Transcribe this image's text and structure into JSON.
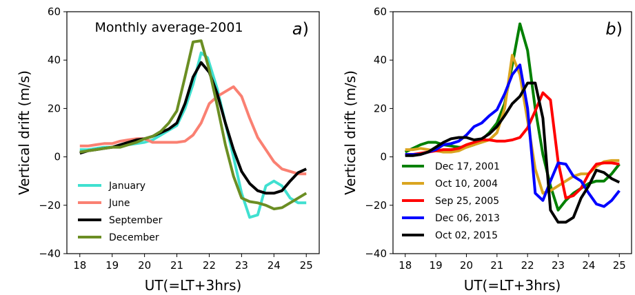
{
  "chart_data": [
    {
      "type": "line",
      "title": "Monthly average-2001",
      "panel_tag": "a",
      "tag_suffix": ")",
      "xlabel": "UT(=LT+3hrs)",
      "ylabel": "Vertical drift (m/s)",
      "xlim": [
        17.6,
        25.4
      ],
      "ylim": [
        -40,
        60
      ],
      "xticks": [
        18,
        19,
        20,
        21,
        22,
        23,
        24,
        25
      ],
      "yticks": [
        -40,
        -20,
        0,
        20,
        40,
        60
      ],
      "grid": false,
      "legend_position": "lower-left",
      "series": [
        {
          "name": "January",
          "color": "#40e0d0",
          "x": [
            18,
            18.25,
            18.5,
            18.75,
            19,
            19.25,
            19.5,
            19.75,
            20,
            20.25,
            20.5,
            20.75,
            21,
            21.25,
            21.5,
            21.75,
            21.95,
            22.25,
            22.5,
            22.75,
            23,
            23.25,
            23.5,
            23.75,
            24,
            24.25,
            24.5,
            24.75,
            25
          ],
          "y": [
            3,
            3,
            3.5,
            4,
            4,
            4.5,
            5,
            5.5,
            6,
            7,
            9,
            11,
            13,
            20,
            30,
            43,
            41,
            28,
            14,
            0,
            -15,
            -25,
            -24,
            -12,
            -10,
            -12,
            -17,
            -19,
            -19
          ]
        },
        {
          "name": "June",
          "color": "#fa8072",
          "x": [
            18,
            18.25,
            18.5,
            18.75,
            19,
            19.25,
            19.5,
            19.75,
            20,
            20.25,
            20.5,
            20.75,
            21,
            21.25,
            21.5,
            21.75,
            22,
            22.25,
            22.5,
            22.75,
            23,
            23.25,
            23.5,
            23.75,
            24,
            24.25,
            24.5,
            24.75,
            25
          ],
          "y": [
            4.5,
            4.5,
            5,
            5.5,
            5.5,
            6.5,
            7,
            7.5,
            7.5,
            6,
            6,
            6,
            6,
            6.5,
            9,
            14,
            22,
            25,
            27,
            29,
            25,
            16,
            8,
            3,
            -2,
            -5,
            -6,
            -7,
            -7
          ]
        },
        {
          "name": "September",
          "color": "#000000",
          "x": [
            18,
            18.25,
            18.5,
            18.75,
            19,
            19.25,
            19.5,
            19.75,
            20,
            20.25,
            20.5,
            20.75,
            21,
            21.25,
            21.5,
            21.75,
            22,
            22.25,
            22.5,
            22.75,
            23,
            23.25,
            23.5,
            23.75,
            24,
            24.25,
            24.5,
            24.75,
            25
          ],
          "y": [
            1.5,
            2.5,
            3,
            3.5,
            4,
            5,
            6,
            7,
            7.5,
            8.5,
            10,
            11.5,
            14,
            22,
            33,
            39,
            35,
            26,
            14,
            3,
            -6,
            -11,
            -14,
            -15,
            -15,
            -14,
            -10,
            -6.5,
            -5
          ]
        },
        {
          "name": "December",
          "color": "#6b8e23",
          "x": [
            18,
            18.25,
            18.5,
            18.75,
            19,
            19.25,
            19.5,
            19.75,
            20,
            20.25,
            20.5,
            20.75,
            21,
            21.25,
            21.5,
            21.75,
            22,
            22.25,
            22.5,
            22.75,
            23,
            23.25,
            23.5,
            23.75,
            24,
            24.25,
            24.5,
            24.75,
            25
          ],
          "y": [
            2,
            2.5,
            3,
            3.5,
            4,
            4,
            5,
            6,
            7.5,
            8.5,
            10.5,
            14,
            19,
            33,
            47.5,
            48,
            36,
            21,
            5,
            -8,
            -17,
            -18.5,
            -19,
            -20,
            -21.5,
            -21,
            -19,
            -17,
            -15
          ]
        }
      ]
    },
    {
      "type": "line",
      "title": "",
      "panel_tag": "b",
      "tag_suffix": ")",
      "xlabel": "UT(=LT+3hrs)",
      "ylabel": "Vertical drift (m/s)",
      "xlim": [
        17.6,
        25.4
      ],
      "ylim": [
        -40,
        60
      ],
      "xticks": [
        18,
        19,
        20,
        21,
        22,
        23,
        24,
        25
      ],
      "yticks": [
        -40,
        -20,
        0,
        20,
        40,
        60
      ],
      "grid": false,
      "legend_position": "lower-left",
      "series": [
        {
          "name": "Dec 17, 2001",
          "color": "#008000",
          "x": [
            18,
            18.25,
            18.5,
            18.75,
            19,
            19.25,
            19.5,
            19.75,
            20,
            20.25,
            20.5,
            20.75,
            21,
            21.25,
            21.5,
            21.75,
            22,
            22.25,
            22.5,
            22.75,
            23,
            23.25,
            23.5,
            23.75,
            24,
            24.25,
            24.5,
            24.75,
            25
          ],
          "y": [
            2,
            3.5,
            5,
            6,
            6,
            5,
            4.5,
            4,
            4,
            5,
            7,
            10,
            14,
            22,
            38,
            55,
            44,
            20,
            1,
            -12,
            -22,
            -18,
            -15,
            -13,
            -11,
            -10,
            -10,
            -7,
            -3
          ]
        },
        {
          "name": "Oct 10, 2004",
          "color": "#daa520",
          "x": [
            18,
            18.25,
            18.5,
            18.75,
            19,
            19.25,
            19.5,
            19.75,
            20,
            20.25,
            20.5,
            20.75,
            21,
            21.25,
            21.5,
            21.75,
            22,
            22.25,
            22.5,
            22.75,
            23,
            23.25,
            23.5,
            23.75,
            24,
            24.25,
            24.5,
            24.75,
            25
          ],
          "y": [
            3,
            3,
            3.5,
            3,
            2.5,
            2,
            2,
            2.5,
            4,
            5,
            6,
            7,
            10,
            20,
            42,
            34,
            15,
            -5,
            -15,
            -14,
            -12,
            -10,
            -8,
            -7,
            -7,
            -4,
            -2,
            -1.5,
            -1.5
          ]
        },
        {
          "name": "Sep 25, 2005",
          "color": "#ff0000",
          "x": [
            18,
            18.25,
            18.5,
            18.75,
            19,
            19.25,
            19.5,
            19.75,
            20,
            20.25,
            20.5,
            20.75,
            21,
            21.25,
            21.5,
            21.75,
            22,
            22.25,
            22.5,
            22.75,
            23,
            23.25,
            23.5,
            23.75,
            24,
            24.25,
            24.5,
            24.75,
            25
          ],
          "y": [
            1,
            1,
            1.5,
            2,
            2.5,
            3,
            3,
            3.5,
            5,
            6,
            7,
            7,
            6.5,
            6.5,
            7,
            8,
            12,
            19,
            26.5,
            23.5,
            -2,
            -17,
            -16,
            -13,
            -7,
            -3,
            -2.5,
            -2.5,
            -3
          ]
        },
        {
          "name": "Dec 06, 2013",
          "color": "#0000ff",
          "x": [
            18,
            18.25,
            18.5,
            18.75,
            19,
            19.25,
            19.5,
            19.75,
            20,
            20.25,
            20.5,
            20.75,
            21,
            21.25,
            21.5,
            21.75,
            22,
            22.25,
            22.5,
            22.75,
            23,
            23.25,
            23.5,
            23.75,
            24,
            24.25,
            24.5,
            24.75,
            25
          ],
          "y": [
            1,
            1,
            1,
            2,
            3,
            5,
            5.5,
            6.5,
            9,
            12.5,
            14,
            17,
            19.5,
            26,
            34,
            38,
            20,
            -15,
            -18,
            -10,
            -2.5,
            -3,
            -8,
            -10,
            -15,
            -19.5,
            -20.5,
            -18,
            -14
          ]
        },
        {
          "name": "Oct 02, 2015",
          "color": "#000000",
          "x": [
            18,
            18.25,
            18.5,
            18.75,
            19,
            19.25,
            19.5,
            19.75,
            20,
            20.25,
            20.5,
            20.75,
            21,
            21.25,
            21.5,
            21.75,
            22,
            22.25,
            22.5,
            22.75,
            23,
            23.25,
            23.5,
            23.75,
            24,
            24.25,
            24.5,
            24.75,
            25
          ],
          "y": [
            0.5,
            0.5,
            1,
            2,
            4,
            6,
            7.5,
            8,
            8,
            7,
            7.5,
            9.5,
            12.5,
            17,
            22,
            25,
            30.5,
            30.5,
            16,
            -22,
            -27,
            -27,
            -25,
            -17,
            -12,
            -5.5,
            -6.5,
            -9,
            -10.5
          ]
        }
      ]
    }
  ]
}
